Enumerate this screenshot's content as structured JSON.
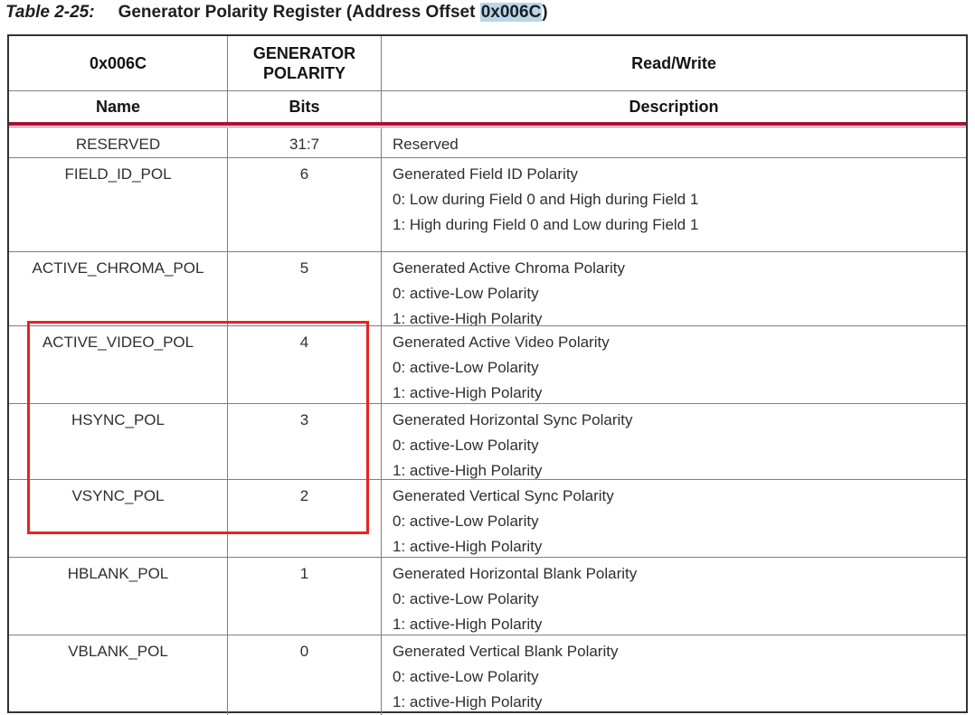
{
  "title": {
    "label": "Table 2-25:",
    "name_pre": "Generator Polarity Register (Address Offset ",
    "offset": "0x006C",
    "name_post": ")"
  },
  "table": {
    "header1": {
      "address": "0x006C",
      "register_name": "GENERATOR\nPOLARITY",
      "access": "Read/Write"
    },
    "header2": {
      "name": "Name",
      "bits": "Bits",
      "description": "Description"
    },
    "rows": [
      {
        "name": "RESERVED",
        "bits": "31:7",
        "desc": [
          "Reserved"
        ]
      },
      {
        "name": "FIELD_ID_POL",
        "bits": "6",
        "desc": [
          "Generated Field ID Polarity",
          "0: Low during Field 0 and High during Field 1",
          "1: High during Field 0 and Low during Field 1"
        ]
      },
      {
        "name": "ACTIVE_CHROMA_POL",
        "bits": "5",
        "desc": [
          "Generated Active Chroma Polarity",
          "0: active-Low Polarity",
          "1: active-High Polarity"
        ]
      },
      {
        "name": "ACTIVE_VIDEO_POL",
        "bits": "4",
        "desc": [
          "Generated Active Video Polarity",
          "0: active-Low Polarity",
          "1: active-High Polarity"
        ]
      },
      {
        "name": "HSYNC_POL",
        "bits": "3",
        "desc": [
          "Generated Horizontal Sync Polarity",
          "0: active-Low Polarity",
          "1: active-High Polarity"
        ]
      },
      {
        "name": "VSYNC_POL",
        "bits": "2",
        "desc": [
          "Generated Vertical Sync Polarity",
          "0: active-Low Polarity",
          "1: active-High Polarity"
        ]
      },
      {
        "name": "HBLANK_POL",
        "bits": "1",
        "desc": [
          "Generated Horizontal Blank Polarity",
          "0: active-Low Polarity",
          "1: active-High Polarity"
        ]
      },
      {
        "name": "VBLANK_POL",
        "bits": "0",
        "desc": [
          "Generated Vertical Blank Polarity",
          "0: active-Low Polarity",
          "1: active-High Polarity"
        ]
      }
    ]
  },
  "annotation": {
    "note": "red rectangle highlighting rows ACTIVE_VIDEO_POL, HSYNC_POL, VSYNC_POL (Name and Bits columns)"
  },
  "colors": {
    "annotation": "#e8231d",
    "rule": "#aa1036",
    "rule_light": "#c9748c",
    "highlight": "#b9d6ea",
    "grid": "#7f7f7f",
    "border": "#333333",
    "text": "#2f2f2f"
  }
}
